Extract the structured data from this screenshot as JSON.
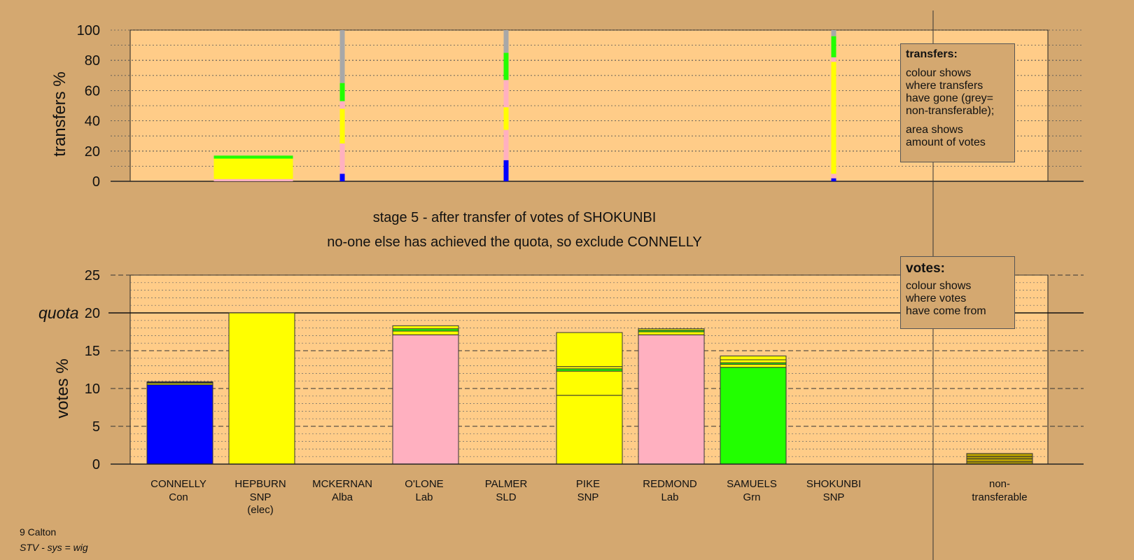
{
  "chart_data": [
    {
      "id": "transfers",
      "type": "bar",
      "stacked": true,
      "ylabel": "transfers %",
      "ylim": [
        0,
        100
      ],
      "yticks": [
        0,
        20,
        40,
        60,
        80,
        100
      ],
      "grid": true,
      "source_columns": [
        {
          "candidate": "HEPBURN",
          "kind": "wide",
          "segments": [
            {
              "party": "Lab",
              "value": 1.5
            },
            {
              "party": "SNP",
              "value": 13.5
            },
            {
              "party": "Grn",
              "value": 2.0
            }
          ]
        },
        {
          "candidate": "MCKERNAN",
          "kind": "thin",
          "segments": [
            {
              "party": "Con",
              "value": 5
            },
            {
              "party": "Lab",
              "value": 20
            },
            {
              "party": "SNP",
              "value": 23
            },
            {
              "party": "Lab",
              "value": 5
            },
            {
              "party": "Grn",
              "value": 12
            },
            {
              "party": "non-transferable",
              "value": 35
            }
          ]
        },
        {
          "candidate": "PALMER",
          "kind": "thin",
          "segments": [
            {
              "party": "Con",
              "value": 14
            },
            {
              "party": "Lab",
              "value": 20
            },
            {
              "party": "SNP",
              "value": 15
            },
            {
              "party": "Lab",
              "value": 18
            },
            {
              "party": "Grn",
              "value": 18
            },
            {
              "party": "non-transferable",
              "value": 15
            }
          ]
        },
        {
          "candidate": "SHOKUNBI",
          "kind": "thin",
          "segments": [
            {
              "party": "Con",
              "value": 2
            },
            {
              "party": "Lab",
              "value": 3
            },
            {
              "party": "SNP",
              "value": 74
            },
            {
              "party": "Lab",
              "value": 3
            },
            {
              "party": "Grn",
              "value": 14
            },
            {
              "party": "non-transferable",
              "value": 4
            }
          ]
        }
      ]
    },
    {
      "id": "votes",
      "type": "bar",
      "stacked": true,
      "ylabel": "votes %",
      "ylim": [
        0,
        25
      ],
      "yticks": [
        0,
        5,
        10,
        15,
        20,
        25
      ],
      "quota": 20,
      "quota_label": "quota",
      "grid": true,
      "candidates": [
        {
          "name": "CONNELLY",
          "party": "Con",
          "note": "",
          "segments": [
            {
              "party": "Con",
              "value": 10.5
            },
            {
              "party": "SNP",
              "value": 0.2
            },
            {
              "party": "Grn",
              "value": 0.1
            },
            {
              "party": "Lab",
              "value": 0.1
            }
          ]
        },
        {
          "name": "HEPBURN",
          "party": "SNP",
          "note": "(elec)",
          "segments": [
            {
              "party": "SNP",
              "value": 20.0
            }
          ]
        },
        {
          "name": "MCKERNAN",
          "party": "Alba",
          "note": "",
          "segments": []
        },
        {
          "name": "O'LONE",
          "party": "Lab",
          "note": "",
          "segments": [
            {
              "party": "Lab",
              "value": 17.1
            },
            {
              "party": "SNP",
              "value": 0.5
            },
            {
              "party": "Grn",
              "value": 0.3
            },
            {
              "party": "SNP",
              "value": 0.4
            }
          ]
        },
        {
          "name": "PALMER",
          "party": "SLD",
          "note": "",
          "segments": []
        },
        {
          "name": "PIKE",
          "party": "SNP",
          "note": "",
          "segments": [
            {
              "party": "SNP",
              "value": 9.1
            },
            {
              "party": "SNP",
              "value": 3.2
            },
            {
              "party": "Grn",
              "value": 0.3
            },
            {
              "party": "SNP",
              "value": 0.3
            },
            {
              "party": "SNP",
              "value": 4.5
            }
          ]
        },
        {
          "name": "REDMOND",
          "party": "Lab",
          "note": "",
          "segments": [
            {
              "party": "Lab",
              "value": 17.1
            },
            {
              "party": "SNP",
              "value": 0.4
            },
            {
              "party": "Grn",
              "value": 0.2
            },
            {
              "party": "SNP",
              "value": 0.2
            }
          ]
        },
        {
          "name": "SAMUELS",
          "party": "Grn",
          "note": "",
          "segments": [
            {
              "party": "Grn",
              "value": 12.8
            },
            {
              "party": "SNP",
              "value": 0.4
            },
            {
              "party": "Grn",
              "value": 0.2
            },
            {
              "party": "SNP",
              "value": 0.4
            },
            {
              "party": "SNP",
              "value": 0.5
            }
          ]
        },
        {
          "name": "SHOKUNBI",
          "party": "SNP",
          "note": "",
          "segments": []
        }
      ],
      "nontransferable": {
        "label_line1": "non-",
        "label_line2": "transferable",
        "segments": [
          {
            "party": "SNP",
            "value": 0.3
          },
          {
            "party": "SNP",
            "value": 0.4
          },
          {
            "party": "SNP",
            "value": 0.3
          },
          {
            "party": "SNP",
            "value": 0.4
          }
        ]
      }
    }
  ],
  "colors": {
    "Con": "#0000ff",
    "SNP": "#ffff00",
    "Lab": "#ffb0c0",
    "Grn": "#22ff00",
    "Alba": "#ffff00",
    "SLD": "#ffa500",
    "non-transferable": "#a8a8a8",
    "plot_bg": "#ffcc88",
    "page_bg": "#d4a870",
    "nontransferable_bar": "#b8a000"
  },
  "headings": {
    "line1": "stage 5 - after transfer of votes of SHOKUNBI",
    "line2": "no-one else has achieved the quota, so exclude CONNELLY"
  },
  "legend_transfers": {
    "title": "transfers:",
    "line1": "colour shows",
    "line2": "where transfers",
    "line3": "have gone (grey=",
    "line4": "non-transferable);",
    "line5": "area shows",
    "line6": "amount of votes"
  },
  "legend_votes": {
    "title": "votes:",
    "line1": "colour shows",
    "line2": "where votes",
    "line3": "have come from"
  },
  "footer": {
    "constituency": "9 Calton",
    "system": "STV - sys = wig"
  }
}
